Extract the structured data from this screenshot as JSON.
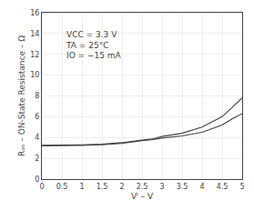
{
  "chart_data": {
    "type": "line",
    "title": "",
    "xlabel": "Vᴵ – V",
    "ylabel": "Rₒₙ – ON-State Resistance – Ω",
    "xlim": [
      0,
      5.0
    ],
    "ylim": [
      0,
      16
    ],
    "xticks": [
      0,
      0.5,
      1.0,
      1.5,
      2.0,
      2.5,
      3.0,
      3.5,
      4.0,
      4.5,
      5.0
    ],
    "yticks": [
      0,
      2,
      4,
      6,
      8,
      10,
      12,
      14,
      16
    ],
    "grid": true,
    "series": [
      {
        "color": "#444444",
        "x": [
          0.0,
          0.5,
          1.0,
          1.5,
          2.0,
          2.5,
          2.75,
          3.0,
          3.5,
          4.0,
          4.5,
          4.75,
          5.0
        ],
        "values": [
          3.25,
          3.25,
          3.3,
          3.35,
          3.5,
          3.75,
          3.85,
          4.1,
          4.4,
          5.0,
          6.0,
          6.9,
          7.8
        ]
      },
      {
        "color": "#444444",
        "x": [
          0.0,
          0.5,
          1.0,
          1.5,
          2.0,
          2.5,
          2.75,
          3.0,
          3.5,
          4.0,
          4.5,
          4.75,
          5.0
        ],
        "values": [
          3.2,
          3.2,
          3.25,
          3.3,
          3.45,
          3.7,
          3.78,
          3.95,
          4.15,
          4.5,
          5.2,
          5.8,
          6.3
        ]
      }
    ],
    "annotations": [
      {
        "text": "VCC = 3.3 V\nTA = 25°C\nIO = −15 mA",
        "x": 0.55,
        "y": 14.5
      }
    ]
  }
}
